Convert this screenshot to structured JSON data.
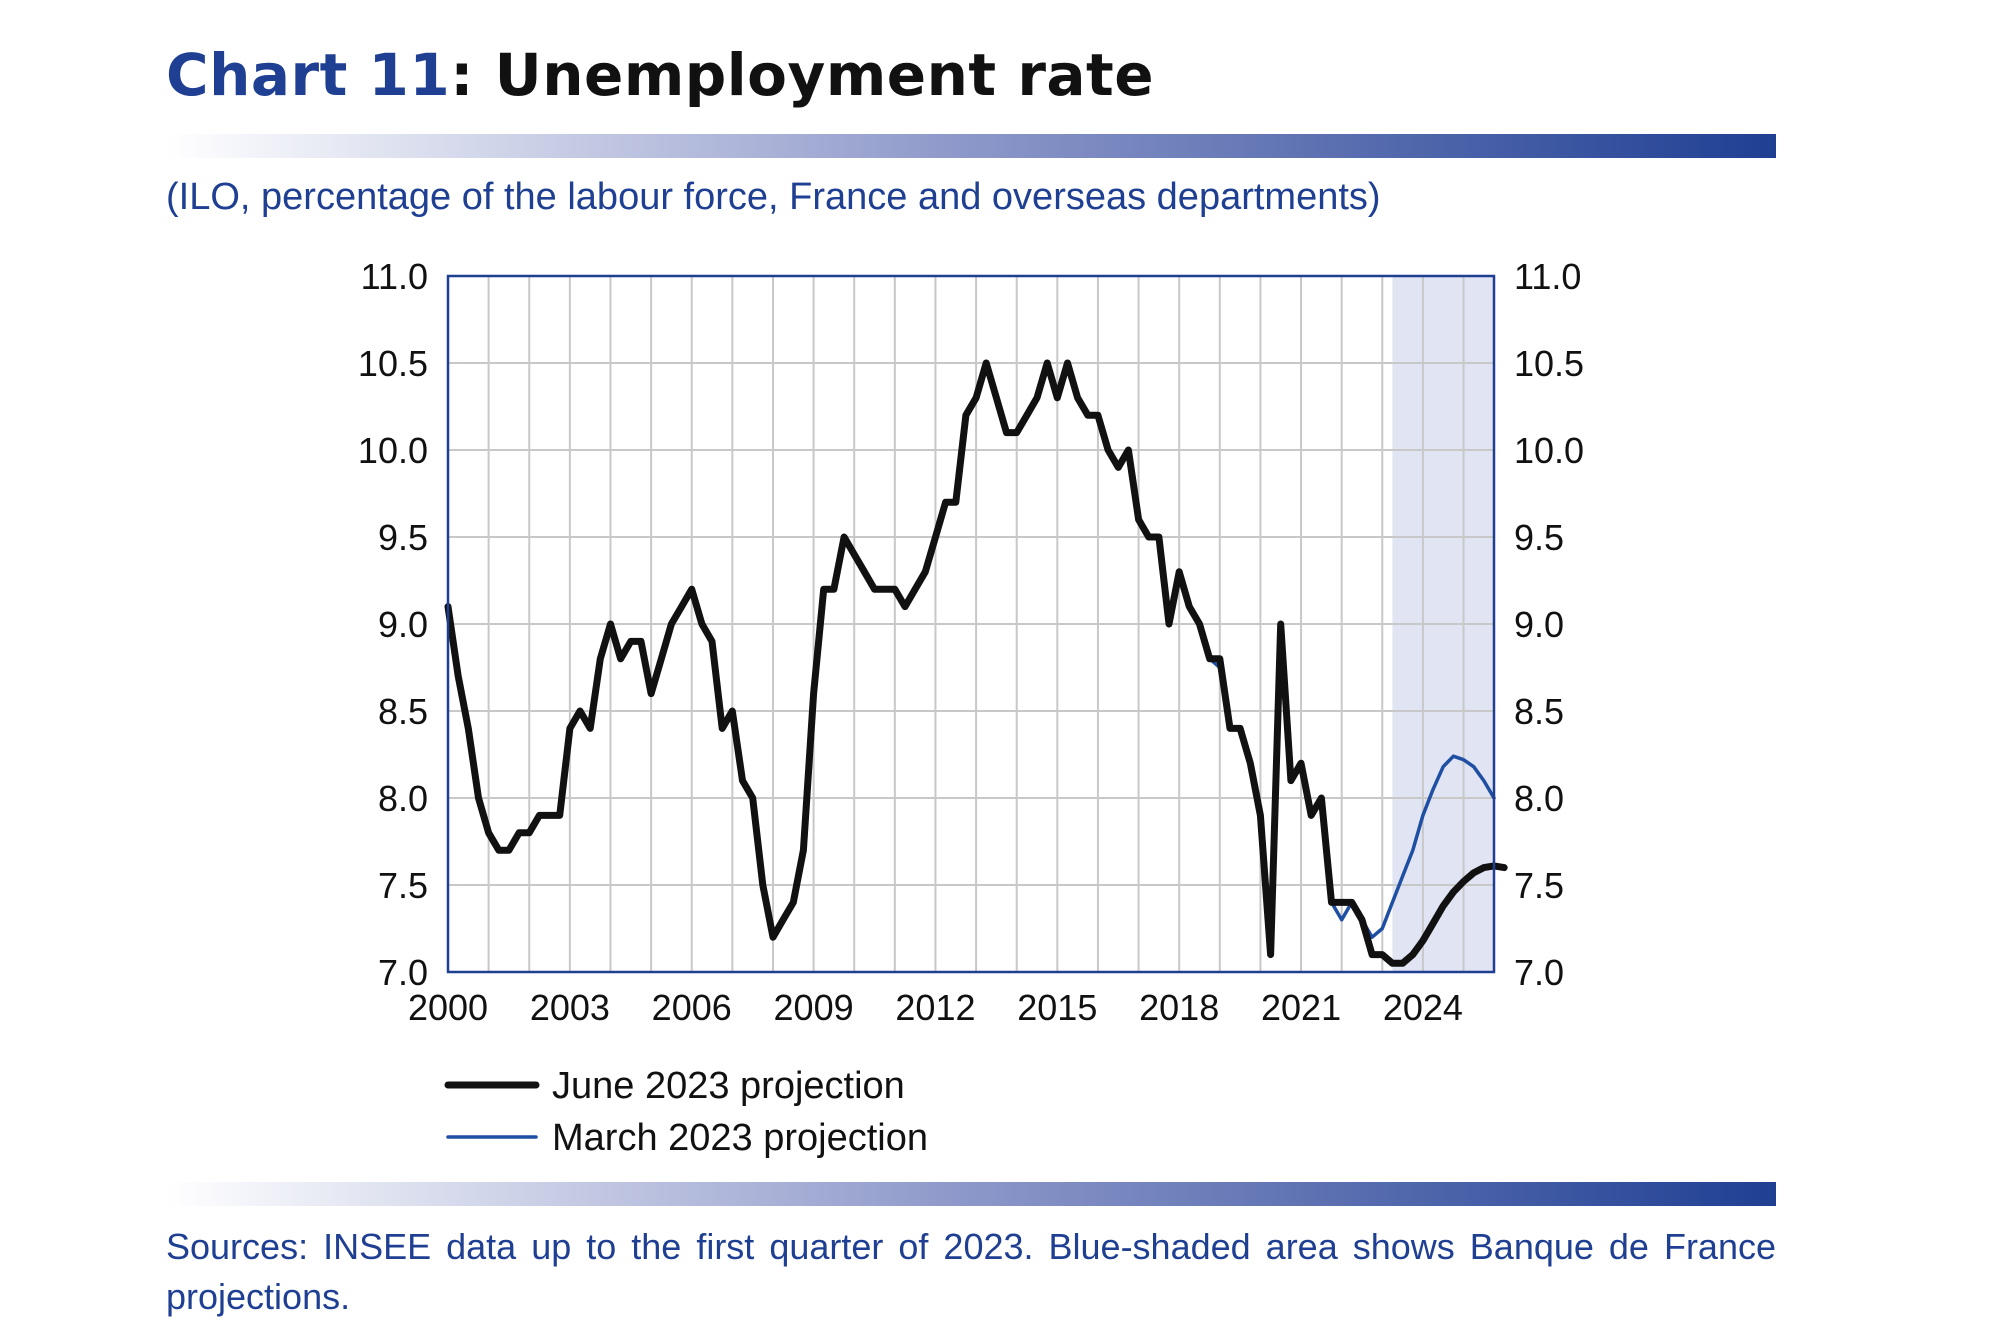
{
  "header": {
    "title_number": "Chart 11",
    "title_text": ": Unemployment rate",
    "subtitle": "(ILO, percentage of the labour force, France and overseas departments)"
  },
  "footer": {
    "sources": "Sources: INSEE data up to the first quarter of 2023. Blue-shaded area shows Banque de France projections."
  },
  "colors": {
    "brand_blue": "#1f3f93",
    "june_line": "#111111",
    "march_line": "#1f4fa3",
    "projection_shade": "#e1e4f3",
    "grid": "#c8c8c8"
  },
  "chart_data": {
    "type": "line",
    "title": "Unemployment rate",
    "subtitle": "(ILO, percentage of the labour force, France and overseas departments)",
    "xlabel": "",
    "ylabel": "",
    "xlim": [
      2000,
      2025.75
    ],
    "ylim": [
      7.0,
      11.0
    ],
    "x_ticks": [
      "2000",
      "2003",
      "2006",
      "2009",
      "2012",
      "2015",
      "2018",
      "2021",
      "2024"
    ],
    "y_ticks": [
      "7.0",
      "7.5",
      "8.0",
      "8.5",
      "9.0",
      "9.5",
      "10.0",
      "10.5",
      "11.0"
    ],
    "y_axis_right": true,
    "grid": true,
    "legend_position": "bottom-left",
    "projection_shade_start": 2023.25,
    "projection_shade_end": 2025.75,
    "x_start_year": 2000,
    "x_step_years": 0.25,
    "series": [
      {
        "name": "June 2023 projection",
        "values": [
          9.1,
          8.7,
          8.4,
          8.0,
          7.8,
          7.7,
          7.7,
          7.8,
          7.8,
          7.9,
          7.9,
          7.9,
          8.4,
          8.5,
          8.4,
          8.8,
          9.0,
          8.8,
          8.9,
          8.9,
          8.6,
          8.8,
          9.0,
          9.1,
          9.2,
          9.0,
          8.9,
          8.4,
          8.5,
          8.1,
          8.0,
          7.5,
          7.2,
          7.3,
          7.4,
          7.7,
          8.6,
          9.2,
          9.2,
          9.5,
          9.4,
          9.3,
          9.2,
          9.2,
          9.2,
          9.1,
          9.2,
          9.3,
          9.5,
          9.7,
          9.7,
          10.2,
          10.3,
          10.5,
          10.3,
          10.1,
          10.1,
          10.2,
          10.3,
          10.5,
          10.3,
          10.5,
          10.3,
          10.2,
          10.2,
          10.0,
          9.9,
          10.0,
          9.6,
          9.5,
          9.5,
          9.0,
          9.3,
          9.1,
          9.0,
          8.8,
          8.8,
          8.4,
          8.4,
          8.2,
          7.9,
          7.1,
          9.0,
          8.1,
          8.2,
          7.9,
          8.0,
          7.4,
          7.4,
          7.4,
          7.3,
          7.1,
          7.1,
          7.05,
          7.05,
          7.1,
          7.18,
          7.28,
          7.38,
          7.46,
          7.52,
          7.57,
          7.6,
          7.61,
          7.6
        ]
      },
      {
        "name": "March 2023 projection",
        "values": [
          9.1,
          8.7,
          8.4,
          8.0,
          7.8,
          7.7,
          7.7,
          7.8,
          7.8,
          7.9,
          7.9,
          7.9,
          8.4,
          8.5,
          8.4,
          8.8,
          9.0,
          8.8,
          8.9,
          8.9,
          8.6,
          8.8,
          9.0,
          9.1,
          9.2,
          9.0,
          8.9,
          8.4,
          8.5,
          8.1,
          8.0,
          7.5,
          7.2,
          7.3,
          7.4,
          7.7,
          8.6,
          9.2,
          9.2,
          9.5,
          9.4,
          9.3,
          9.2,
          9.2,
          9.2,
          9.1,
          9.2,
          9.3,
          9.5,
          9.7,
          9.7,
          10.2,
          10.3,
          10.5,
          10.3,
          10.1,
          10.1,
          10.2,
          10.3,
          10.5,
          10.3,
          10.5,
          10.3,
          10.2,
          10.2,
          10.0,
          9.9,
          10.0,
          9.6,
          9.5,
          9.5,
          9.0,
          9.3,
          9.1,
          9.0,
          8.8,
          8.75,
          8.4,
          8.4,
          8.2,
          7.9,
          7.1,
          9.0,
          8.1,
          8.2,
          7.9,
          8.0,
          7.4,
          7.3,
          7.4,
          7.3,
          7.2,
          7.25,
          7.4,
          7.55,
          7.7,
          7.9,
          8.05,
          8.18,
          8.24,
          8.22,
          8.18,
          8.1,
          8.0
        ]
      }
    ]
  }
}
